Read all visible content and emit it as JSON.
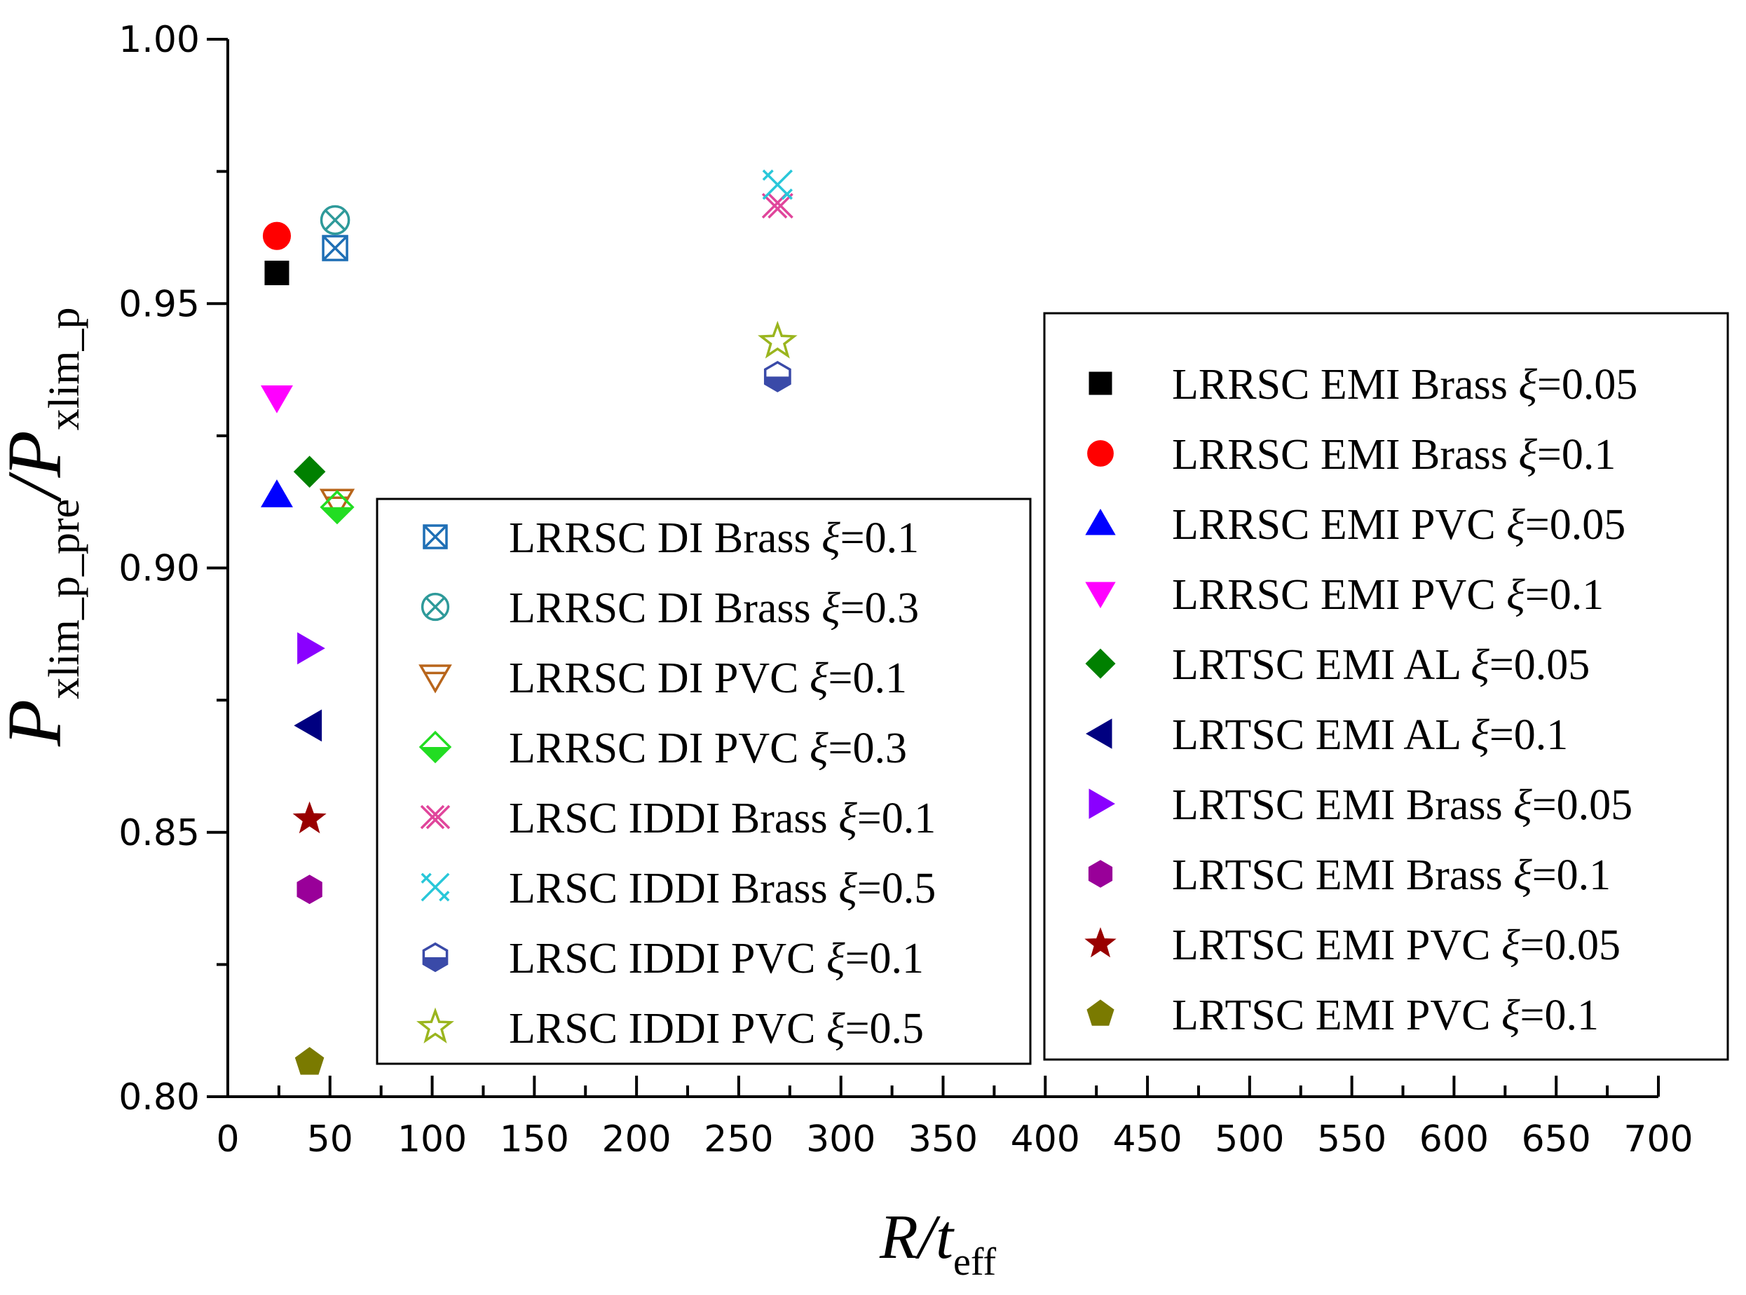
{
  "chart_data": {
    "type": "scatter",
    "xlabel": {
      "main": "R/t",
      "sub": "eff"
    },
    "ylabel": {
      "p1": "P",
      "s1": "xlim_p_pre",
      "mid": "/P",
      "s2": "xlim_p"
    },
    "xlim": [
      0,
      700
    ],
    "ylim": [
      0.8,
      1.0
    ],
    "x_ticks": [
      0,
      50,
      100,
      150,
      200,
      250,
      300,
      350,
      400,
      450,
      500,
      550,
      600,
      650,
      700
    ],
    "x_tick_labels": [
      "0",
      "50",
      "100",
      "150",
      "200",
      "250",
      "300",
      "350",
      "400",
      "450",
      "500",
      "550",
      "600",
      "650",
      "700"
    ],
    "y_ticks": [
      0.8,
      0.85,
      0.9,
      0.95,
      1.0
    ],
    "y_tick_labels": [
      "0.80",
      "0.85",
      "0.90",
      "0.95",
      "1.00"
    ],
    "grid": false,
    "series": [
      {
        "id": "lrrsc-di-brass-01",
        "name": "LRRSC DI Brass ",
        "xi": "=0.1",
        "marker": "square-x",
        "color": "#1f6fb5",
        "filled": false,
        "legend": "left",
        "points": [
          [
            52.5,
            0.9605
          ]
        ]
      },
      {
        "id": "lrrsc-di-brass-03",
        "name": "LRRSC DI Brass ",
        "xi": "=0.3",
        "marker": "circle-x",
        "color": "#2e9a9a",
        "filled": false,
        "legend": "left",
        "points": [
          [
            52.5,
            0.9658
          ]
        ]
      },
      {
        "id": "lrrsc-di-pvc-01",
        "name": "LRRSC DI PVC ",
        "xi": "=0.1",
        "marker": "triangle-down-open",
        "color": "#b8651b",
        "filled": false,
        "legend": "left",
        "points": [
          [
            53.5,
            0.9125
          ]
        ]
      },
      {
        "id": "lrrsc-di-pvc-03",
        "name": "LRRSC DI PVC ",
        "xi": "=0.3",
        "marker": "diamond-half",
        "color": "#22dd22",
        "filled": false,
        "legend": "left",
        "points": [
          [
            53.5,
            0.9115
          ]
        ]
      },
      {
        "id": "lrsc-iddi-brass-01",
        "name": "LRSC IDDI Brass ",
        "xi": "=0.1",
        "marker": "x-double",
        "color": "#e0459b",
        "filled": false,
        "legend": "left",
        "points": [
          [
            269,
            0.9685
          ]
        ]
      },
      {
        "id": "lrsc-iddi-brass-05",
        "name": "LRSC IDDI Brass ",
        "xi": "=0.5",
        "marker": "x-arrow",
        "color": "#29c7d9",
        "filled": false,
        "legend": "left",
        "points": [
          [
            269,
            0.9725
          ]
        ]
      },
      {
        "id": "lrsc-iddi-pvc-01",
        "name": "LRSC IDDI PVC ",
        "xi": "=0.1",
        "marker": "hexagon-half",
        "color": "#3a4aa8",
        "filled": false,
        "legend": "left",
        "points": [
          [
            269,
            0.9362
          ]
        ]
      },
      {
        "id": "lrsc-iddi-pvc-05",
        "name": "LRSC IDDI PVC ",
        "xi": "=0.5",
        "marker": "star-open",
        "color": "#9ab51e",
        "filled": false,
        "legend": "left",
        "points": [
          [
            269,
            0.9428
          ]
        ]
      },
      {
        "id": "lrrsc-emi-brass-005",
        "name": "LRRSC EMI Brass ",
        "xi": "=0.05",
        "marker": "square",
        "color": "#000000",
        "filled": true,
        "legend": "right",
        "points": [
          [
            24,
            0.9558
          ]
        ]
      },
      {
        "id": "lrrsc-emi-brass-01",
        "name": "LRRSC EMI Brass ",
        "xi": "=0.1",
        "marker": "circle",
        "color": "#ff0000",
        "filled": true,
        "legend": "right",
        "points": [
          [
            24,
            0.9628
          ]
        ]
      },
      {
        "id": "lrrsc-emi-pvc-005",
        "name": "LRRSC EMI PVC ",
        "xi": "=0.05",
        "marker": "triangle-up",
        "color": "#0000ff",
        "filled": true,
        "legend": "right",
        "points": [
          [
            24,
            0.9138
          ]
        ]
      },
      {
        "id": "lrrsc-emi-pvc-01",
        "name": "LRRSC EMI PVC ",
        "xi": "=0.1",
        "marker": "triangle-down",
        "color": "#ff00ff",
        "filled": true,
        "legend": "right",
        "points": [
          [
            24,
            0.9322
          ]
        ]
      },
      {
        "id": "lrtsc-emi-al-005",
        "name": "LRTSC EMI AL ",
        "xi": "=0.05",
        "marker": "diamond",
        "color": "#008000",
        "filled": true,
        "legend": "right",
        "points": [
          [
            40,
            0.9182
          ]
        ]
      },
      {
        "id": "lrtsc-emi-al-01",
        "name": "LRTSC EMI AL ",
        "xi": "=0.1",
        "marker": "triangle-left",
        "color": "#000080",
        "filled": true,
        "legend": "right",
        "points": [
          [
            40,
            0.8702
          ]
        ]
      },
      {
        "id": "lrtsc-emi-brass-005",
        "name": "LRTSC EMI Brass ",
        "xi": "=0.05",
        "marker": "triangle-right",
        "color": "#8a00ff",
        "filled": true,
        "legend": "right",
        "points": [
          [
            40,
            0.8848
          ]
        ]
      },
      {
        "id": "lrtsc-emi-brass-01",
        "name": "LRTSC EMI Brass ",
        "xi": "=0.1",
        "marker": "hexagon",
        "color": "#990099",
        "filled": true,
        "legend": "right",
        "points": [
          [
            40,
            0.8392
          ]
        ]
      },
      {
        "id": "lrtsc-emi-pvc-005",
        "name": "LRTSC EMI PVC ",
        "xi": "=0.05",
        "marker": "star",
        "color": "#990000",
        "filled": true,
        "legend": "right",
        "points": [
          [
            40,
            0.8525
          ]
        ]
      },
      {
        "id": "lrtsc-emi-pvc-01",
        "name": "LRTSC EMI PVC ",
        "xi": "=0.1",
        "marker": "pentagon",
        "color": "#7a7a00",
        "filled": true,
        "legend": "right",
        "points": [
          [
            40,
            0.8065
          ]
        ]
      }
    ],
    "xi_symbol": "ξ"
  }
}
